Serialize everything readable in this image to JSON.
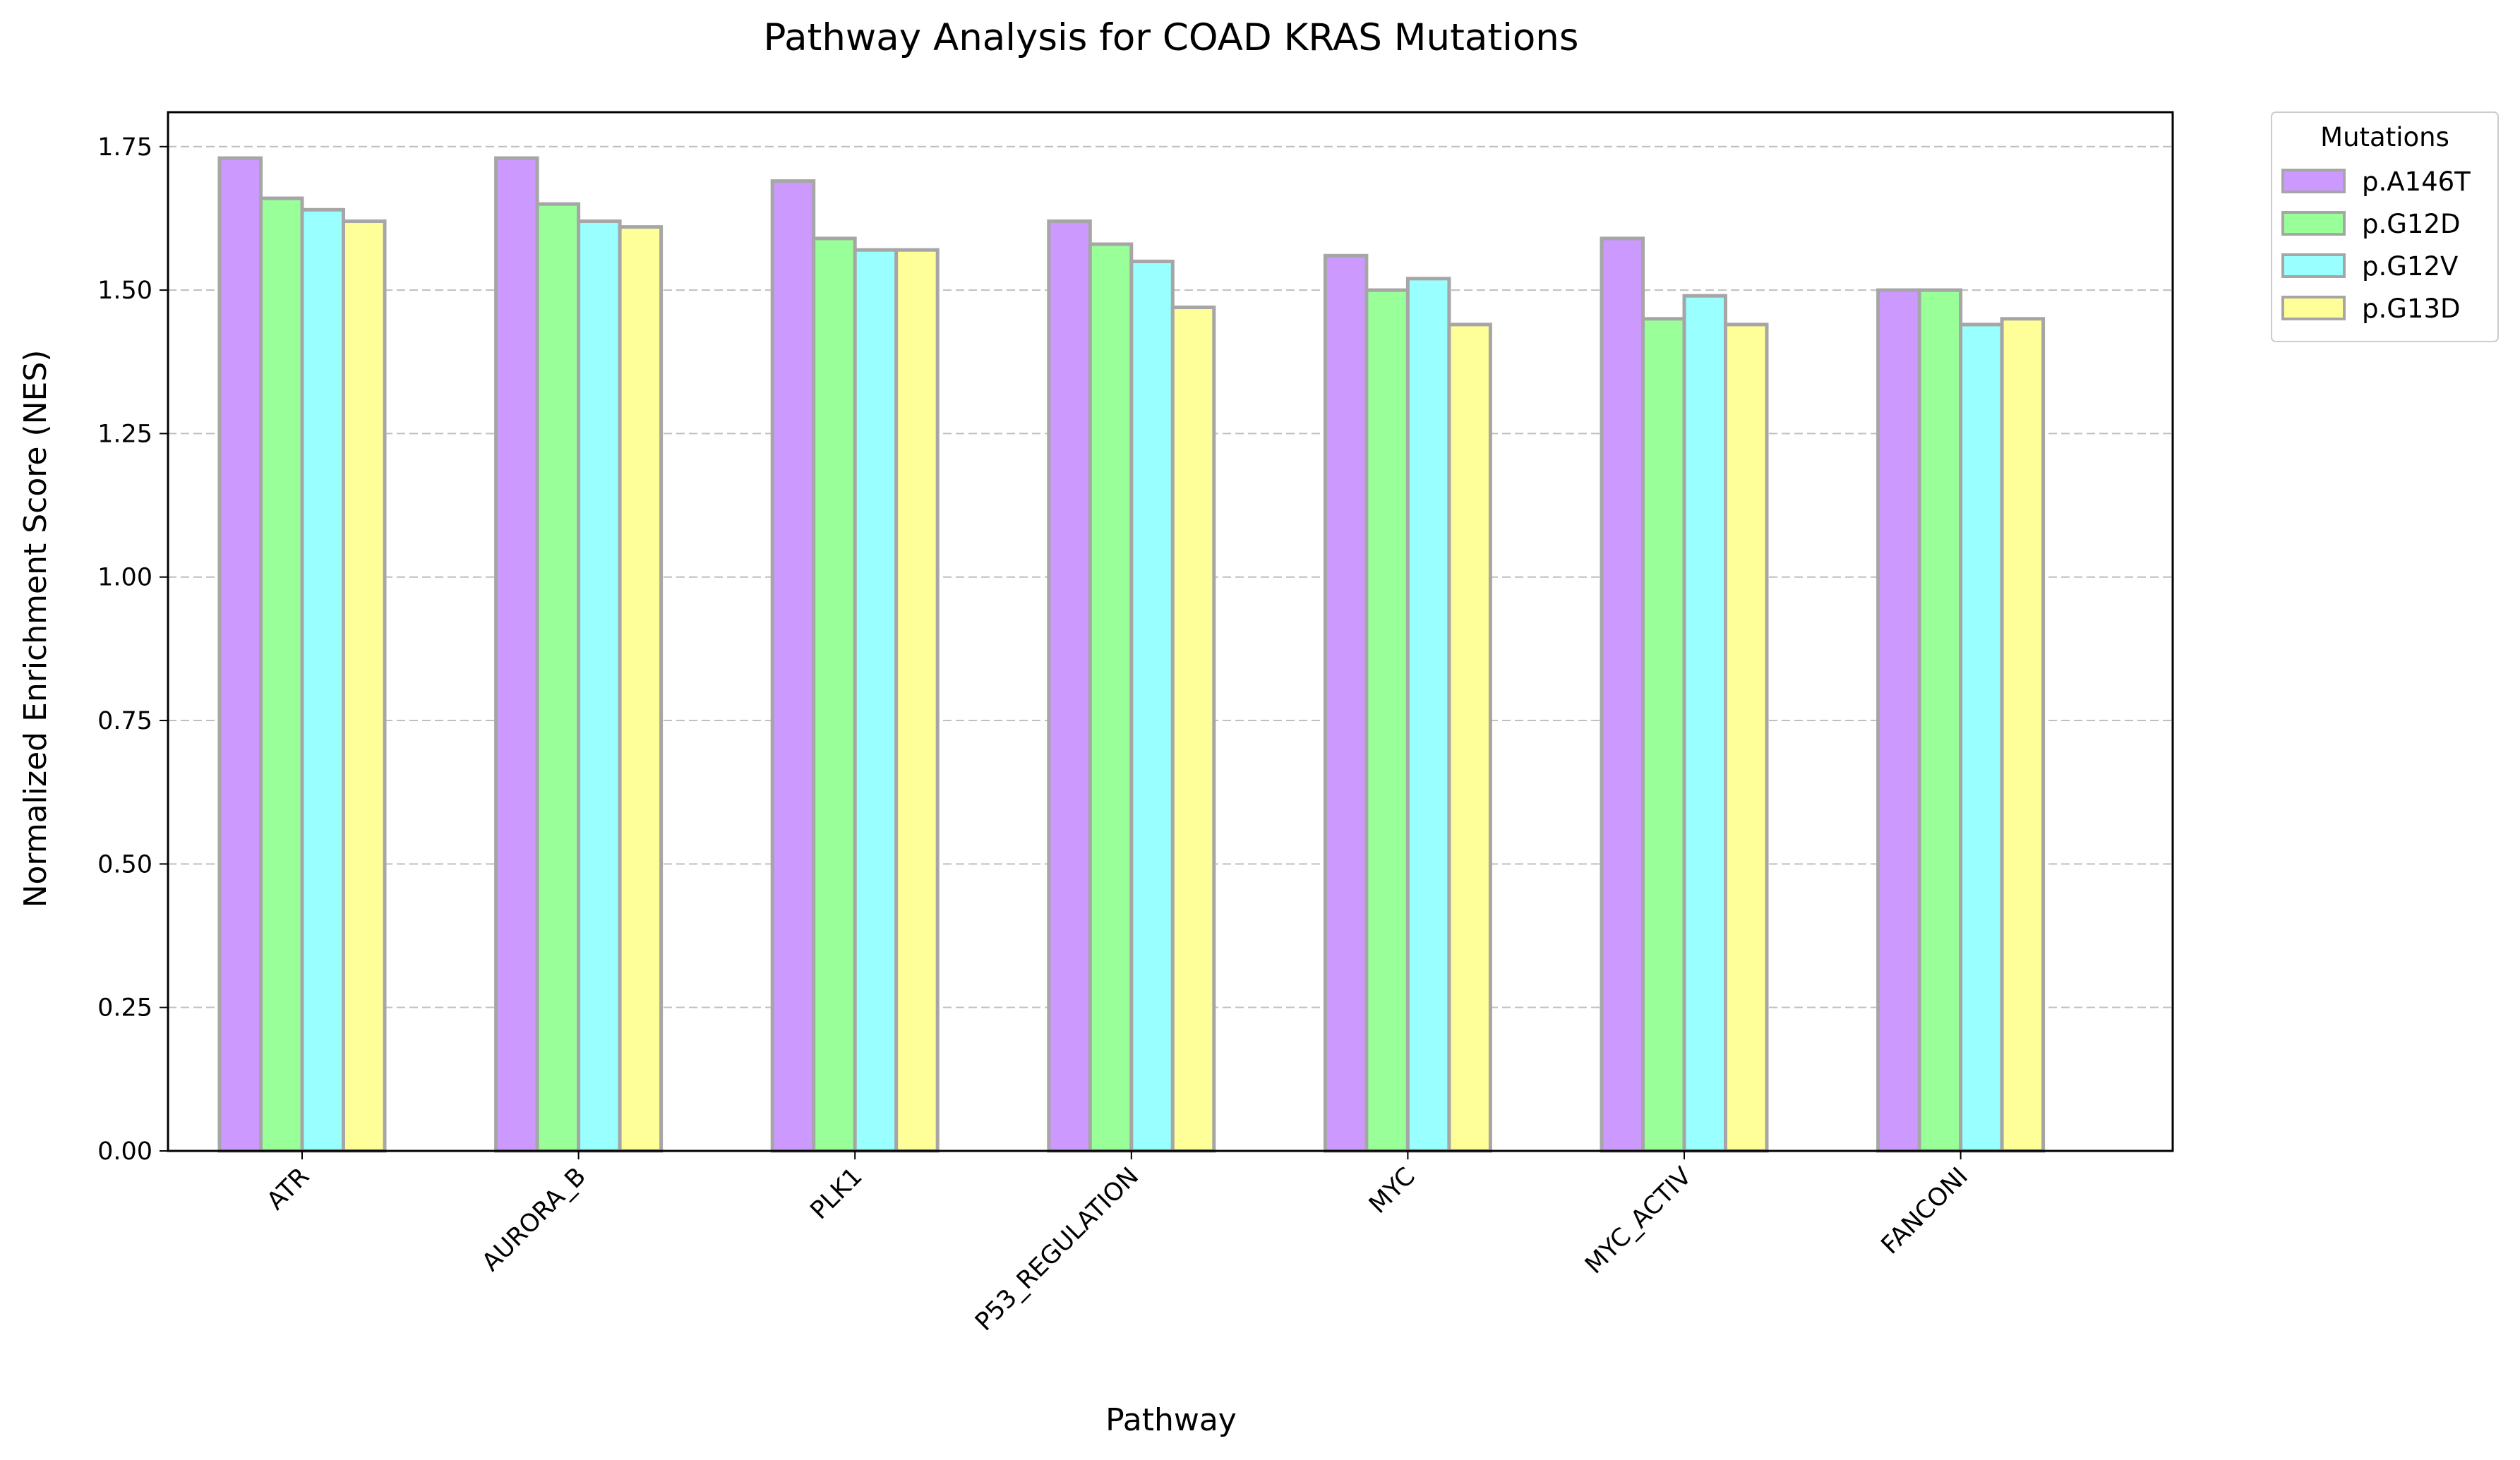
{
  "chart_data": {
    "type": "bar",
    "title": "Pathway Analysis for COAD KRAS Mutations",
    "xlabel": "Pathway",
    "ylabel": "Normalized Enrichment Score (NES)",
    "ylim": [
      0,
      1.81
    ],
    "yticks": [
      "0.00",
      "0.25",
      "0.50",
      "0.75",
      "1.00",
      "1.25",
      "1.50",
      "1.75"
    ],
    "grid": "y-dashed",
    "categories": [
      "ATR",
      "AURORA_B",
      "PLK1",
      "P53_REGULATION",
      "MYC",
      "MYC_ACTIV",
      "FANCONI"
    ],
    "series": [
      {
        "name": "p.A146T",
        "color": "#cc99ff",
        "values": [
          1.73,
          1.73,
          1.69,
          1.62,
          1.56,
          1.59,
          1.5
        ]
      },
      {
        "name": "p.G12D",
        "color": "#99ff99",
        "values": [
          1.66,
          1.65,
          1.59,
          1.58,
          1.5,
          1.45,
          1.5
        ]
      },
      {
        "name": "p.G12V",
        "color": "#99ffff",
        "values": [
          1.64,
          1.62,
          1.57,
          1.55,
          1.52,
          1.49,
          1.44
        ]
      },
      {
        "name": "p.G13D",
        "color": "#ffff99",
        "values": [
          1.62,
          1.61,
          1.57,
          1.47,
          1.44,
          1.44,
          1.45
        ]
      }
    ],
    "bar_edge_color": "#a6a6a6",
    "legend": {
      "title": "Mutations",
      "placement": "outside-top-right"
    }
  }
}
